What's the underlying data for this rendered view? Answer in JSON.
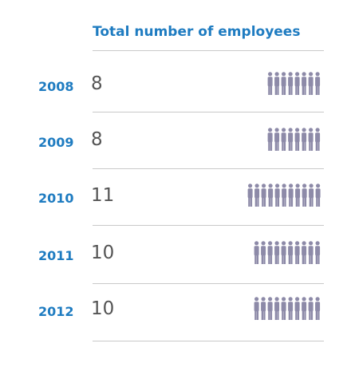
{
  "chart_data": {
    "type": "table",
    "title": "Total number of employees",
    "categories": [
      "2008",
      "2009",
      "2010",
      "2011",
      "2012"
    ],
    "values": [
      8,
      8,
      11,
      10,
      10
    ],
    "icon": "person-icon",
    "icon_color": "#8d8aa8",
    "title_color": "#1f7cc1",
    "year_color": "#1f7cc1",
    "value_color": "#555555",
    "rows": [
      {
        "year": "2008",
        "count": "8"
      },
      {
        "year": "2009",
        "count": "8"
      },
      {
        "year": "2010",
        "count": "11"
      },
      {
        "year": "2011",
        "count": "10"
      },
      {
        "year": "2012",
        "count": "10"
      }
    ]
  }
}
